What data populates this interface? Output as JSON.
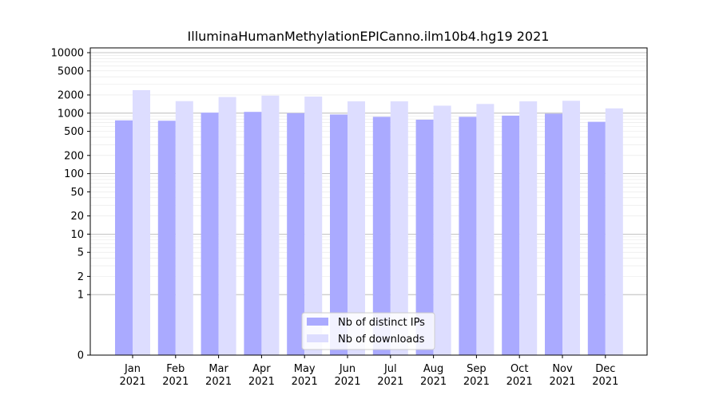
{
  "chart_data": {
    "type": "bar",
    "title": "IlluminaHumanMethylationEPICanno.ilm10b4.hg19 2021",
    "xlabel": "",
    "ylabel": "",
    "y_scale": "symlog",
    "ylim": [
      0,
      12000
    ],
    "y_ticks": [
      0,
      1,
      2,
      5,
      10,
      20,
      50,
      100,
      200,
      500,
      1000,
      2000,
      5000,
      10000
    ],
    "y_tick_labels": [
      "0",
      "1",
      "2",
      "5",
      "10",
      "20",
      "50",
      "100",
      "200",
      "500",
      "1000",
      "2000",
      "5000",
      "10000"
    ],
    "grid": true,
    "legend_position": "lower-center",
    "categories": [
      [
        "Jan",
        "2021"
      ],
      [
        "Feb",
        "2021"
      ],
      [
        "Mar",
        "2021"
      ],
      [
        "Apr",
        "2021"
      ],
      [
        "May",
        "2021"
      ],
      [
        "Jun",
        "2021"
      ],
      [
        "Jul",
        "2021"
      ],
      [
        "Aug",
        "2021"
      ],
      [
        "Sep",
        "2021"
      ],
      [
        "Oct",
        "2021"
      ],
      [
        "Nov",
        "2021"
      ],
      [
        "Dec",
        "2021"
      ]
    ],
    "series": [
      {
        "name": "Nb of distinct IPs",
        "color": "#aaaaff",
        "values": [
          760,
          750,
          1020,
          1050,
          1000,
          950,
          870,
          780,
          870,
          910,
          980,
          720
        ]
      },
      {
        "name": "Nb of downloads",
        "color": "#ddddff",
        "values": [
          2400,
          1580,
          1850,
          1950,
          1880,
          1570,
          1570,
          1330,
          1420,
          1570,
          1600,
          1200
        ]
      }
    ]
  }
}
